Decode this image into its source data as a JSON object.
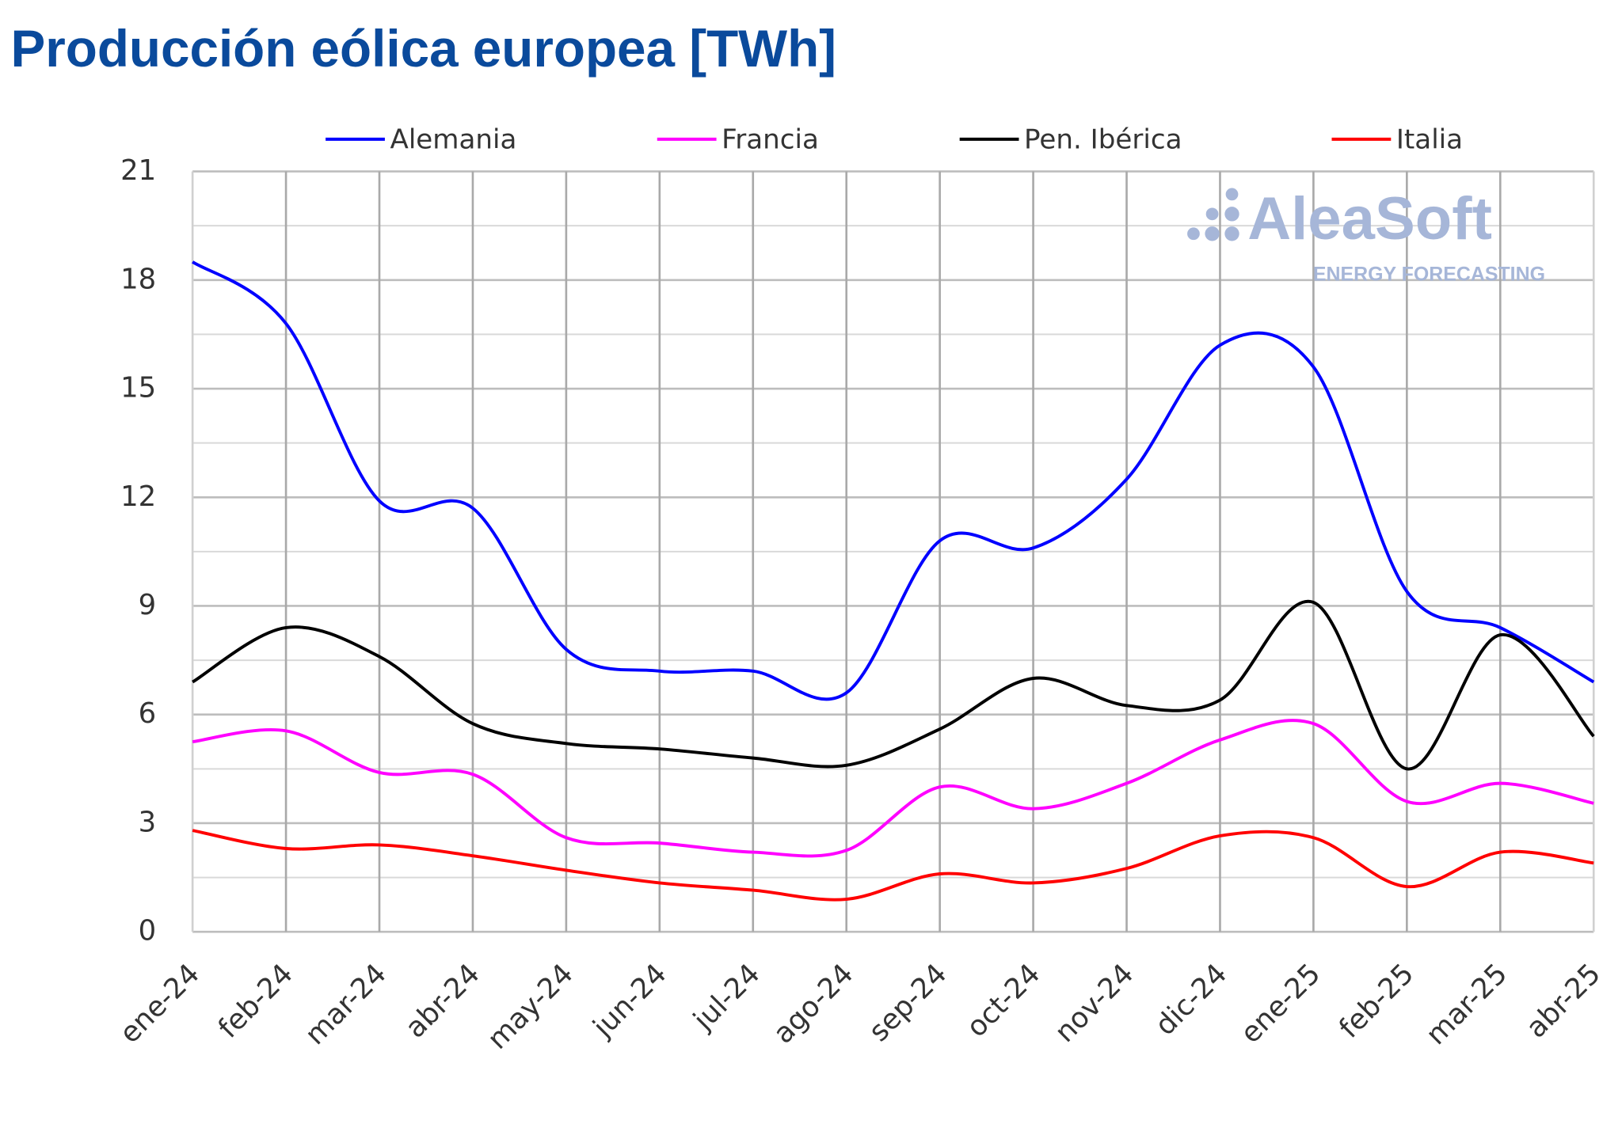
{
  "chart_data": {
    "type": "line",
    "title": "Producción eólica europea [TWh]",
    "xlabel": "",
    "ylabel": "",
    "ylim": [
      0,
      21
    ],
    "yticks": [
      0,
      3,
      6,
      9,
      12,
      15,
      18,
      21
    ],
    "grid": true,
    "legend_position": "top",
    "categories": [
      "ene-24",
      "feb-24",
      "mar-24",
      "abr-24",
      "may-24",
      "jun-24",
      "jul-24",
      "ago-24",
      "sep-24",
      "oct-24",
      "nov-24",
      "dic-24",
      "ene-25",
      "feb-25",
      "mar-25",
      "abr-25"
    ],
    "series": [
      {
        "name": "Alemania",
        "color": "#0000ff",
        "values": [
          18.5,
          16.8,
          11.9,
          11.7,
          7.8,
          7.2,
          7.2,
          6.6,
          10.8,
          10.6,
          12.5,
          16.2,
          15.6,
          9.4,
          8.4,
          6.9
        ]
      },
      {
        "name": "Francia",
        "color": "#ff00ff",
        "values": [
          5.25,
          5.55,
          4.4,
          4.35,
          2.6,
          2.45,
          2.2,
          2.25,
          4.0,
          3.4,
          4.1,
          5.3,
          5.75,
          3.6,
          4.1,
          3.55
        ]
      },
      {
        "name": "Pen. Ibérica",
        "color": "#000000",
        "values": [
          6.9,
          8.4,
          7.6,
          5.75,
          5.2,
          5.05,
          4.8,
          4.6,
          5.6,
          7.0,
          6.25,
          6.4,
          9.1,
          4.5,
          8.2,
          5.4
        ]
      },
      {
        "name": "Italia",
        "color": "#ff0000",
        "values": [
          2.8,
          2.3,
          2.4,
          2.1,
          1.7,
          1.35,
          1.15,
          0.9,
          1.6,
          1.35,
          1.75,
          2.65,
          2.6,
          1.25,
          2.2,
          1.9
        ]
      }
    ]
  },
  "watermark": {
    "brand": "AleaSoft",
    "tagline": "ENERGY FORECASTING"
  }
}
